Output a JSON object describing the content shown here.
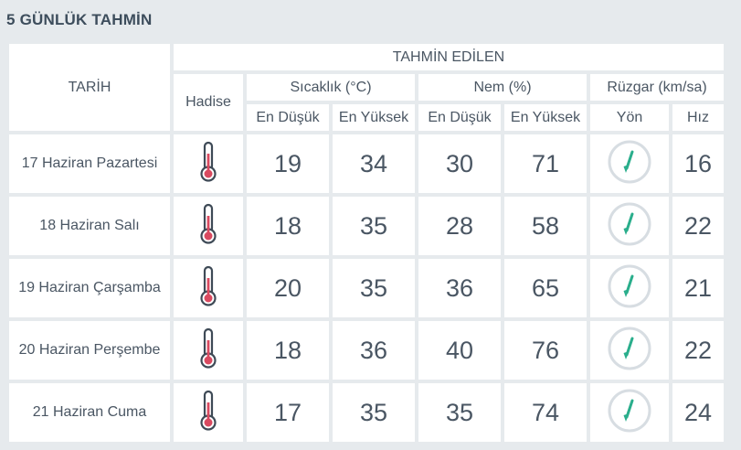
{
  "title": "5 GÜNLÜK TAHMİN",
  "header": {
    "date_col": "TARİH",
    "forecast_group": "TAHMİN EDİLEN",
    "phenomenon": "Hadise",
    "temperature": "Sıcaklık (°C)",
    "humidity": "Nem (%)",
    "wind": "Rüzgar (km/sa)",
    "temp_min": "En Düşük",
    "temp_max": "En Yüksek",
    "hum_min": "En Düşük",
    "hum_max": "En Yüksek",
    "direction": "Yön",
    "speed": "Hız"
  },
  "icons": {
    "phenomenon": "thermometer-icon",
    "direction": "wind-direction-arrow-icon"
  },
  "colors": {
    "temp_min": "#2e8fb0",
    "temp_max": "#d94a60",
    "hum_min": "#e0a232",
    "hum_max": "#7468a8",
    "speed": "#2aae8c"
  },
  "rows": [
    {
      "date": "17 Haziran Pazartesi",
      "temp_min": "19",
      "temp_max": "34",
      "hum_min": "30",
      "hum_max": "71",
      "speed": "16"
    },
    {
      "date": "18 Haziran Salı",
      "temp_min": "18",
      "temp_max": "35",
      "hum_min": "28",
      "hum_max": "58",
      "speed": "22"
    },
    {
      "date": "19 Haziran Çarşamba",
      "temp_min": "20",
      "temp_max": "35",
      "hum_min": "36",
      "hum_max": "65",
      "speed": "21"
    },
    {
      "date": "20 Haziran Perşembe",
      "temp_min": "18",
      "temp_max": "36",
      "hum_min": "40",
      "hum_max": "76",
      "speed": "22"
    },
    {
      "date": "21 Haziran Cuma",
      "temp_min": "17",
      "temp_max": "35",
      "hum_min": "35",
      "hum_max": "74",
      "speed": "24"
    }
  ]
}
